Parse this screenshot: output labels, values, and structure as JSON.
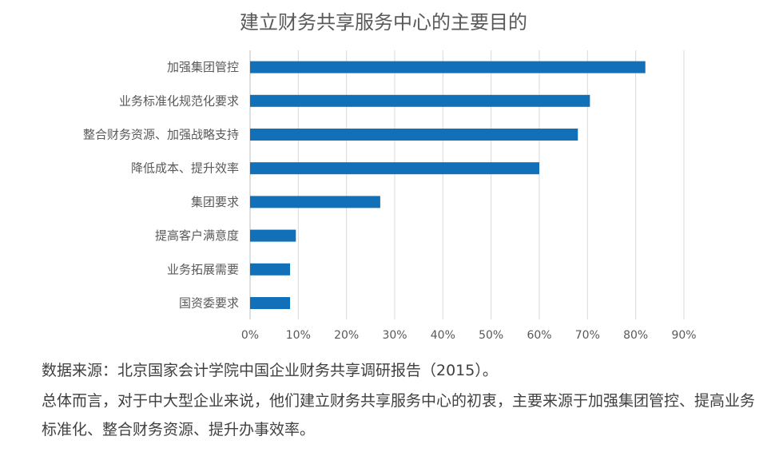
{
  "chart_data": {
    "type": "bar",
    "orientation": "horizontal",
    "title": "建立财务共享服务中心的主要目的",
    "categories": [
      "加强集团管控",
      "业务标准化规范化要求",
      "整合财务资源、加强战略支持",
      "降低成本、提升效率",
      "集团要求",
      "提高客户满意度",
      "业务拓展需要",
      "国资委要求"
    ],
    "values": [
      82,
      70.5,
      68,
      60,
      27,
      9.5,
      8.3,
      8.3
    ],
    "xlim": [
      0,
      90
    ],
    "xticks": [
      "0%",
      "10%",
      "20%",
      "30%",
      "40%",
      "50%",
      "60%",
      "70%",
      "80%",
      "90%"
    ],
    "grid": true,
    "bar_color": "#1170b8"
  },
  "notes": {
    "source": "数据来源：北京国家会计学院中国企业财务共享调研报告（2015）。",
    "summary": "总体而言，对于中大型企业来说，他们建立财务共享服务中心的初衷，主要来源于加强集团管控、提高业务标准化、整合财务资源、提升办事效率。"
  }
}
